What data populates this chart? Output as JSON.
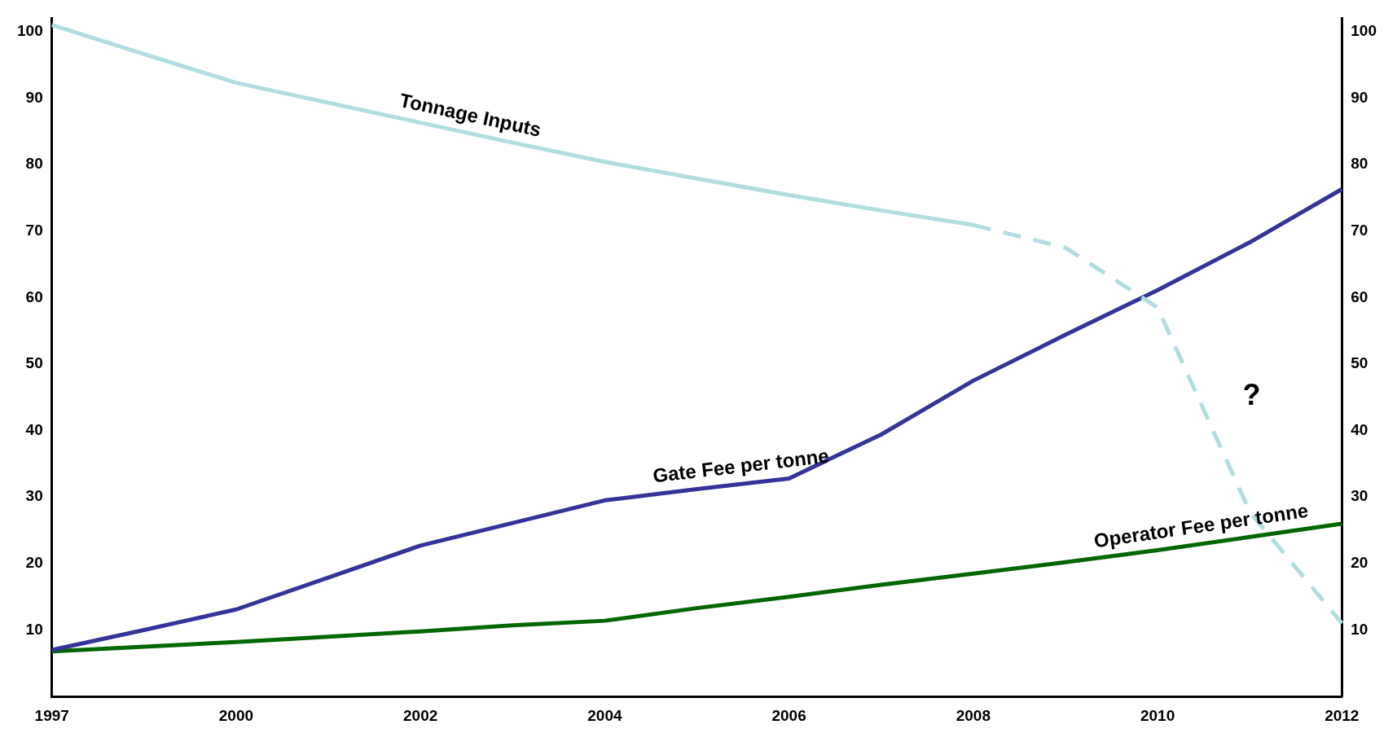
{
  "chart_data": {
    "type": "line",
    "categories": [
      "1997",
      null,
      "2000",
      null,
      "2002",
      null,
      "2004",
      null,
      "2006",
      null,
      "2008",
      null,
      "2010",
      null,
      "2012"
    ],
    "series": [
      {
        "name": "Tonnage Inputs",
        "color": "#b0dde0",
        "values": [
          101,
          96.6,
          92.3,
          89.3,
          86.3,
          83.3,
          80.4,
          77.9,
          75.4,
          73.1,
          70.9,
          null,
          null,
          null,
          null
        ]
      },
      {
        "color": "#b0dde0",
        "line_style": "dashed",
        "values": [
          null,
          null,
          null,
          null,
          null,
          null,
          null,
          null,
          null,
          null,
          70.9,
          67.5,
          58.5,
          27.8,
          11
        ]
      },
      {
        "name": "Gate Fee per tonne",
        "color": "#333399",
        "values": [
          7,
          10,
          13.1,
          17.9,
          22.7,
          26.1,
          29.5,
          31.2,
          32.8,
          39.4,
          47.5,
          54.4,
          61.1,
          68.3,
          76.3
        ]
      },
      {
        "name": "Operator Fee per tonne",
        "color": "#006600",
        "values": [
          6.8,
          7.5,
          8.2,
          9,
          9.8,
          10.7,
          11.4,
          13.3,
          15,
          16.8,
          18.5,
          20.2,
          22,
          24,
          26
        ]
      }
    ],
    "ylim": [
      0,
      102
    ],
    "yticks": [
      10,
      20,
      30,
      40,
      50,
      60,
      70,
      80,
      90,
      100
    ],
    "y2lim": [
      0,
      102
    ],
    "y2ticks": [
      10,
      20,
      30,
      40,
      50,
      60,
      70,
      80,
      90,
      100
    ],
    "annotations": [
      "?"
    ],
    "grid": false,
    "legend": false,
    "marker": "none",
    "line_style": "solid"
  }
}
